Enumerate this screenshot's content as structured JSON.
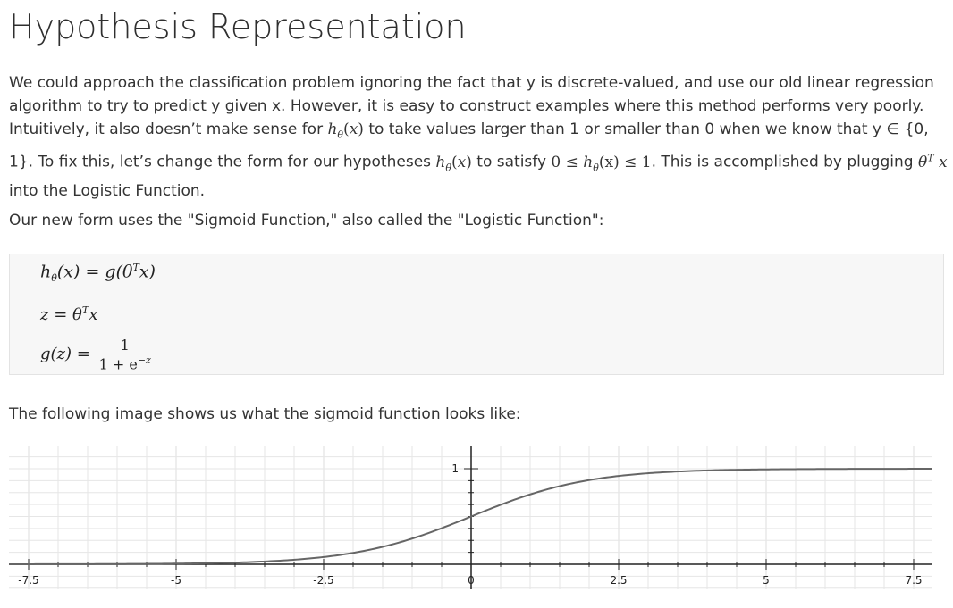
{
  "title": "Hypothesis Representation",
  "p1": {
    "t1": "We could approach the classification problem ignoring the fact that y is discrete-valued, and use our old linear regression algorithm to try to predict y given x. However, it is easy to construct examples where this method performs very poorly. Intuitively, it also doesn’t make sense for ",
    "t2": " to take values larger than 1 or smaller than 0 when we know that y ∈ {0, 1}. To fix this, let’s change the form for our hypotheses ",
    "t3": " to satisfy ",
    "t4": ". This is accomplished by plugging ",
    "t5": " into the Logistic Function."
  },
  "p2": "Our new form uses the \"Sigmoid Function,\" also called the \"Logistic Function\":",
  "p3": "The following image shows us what the sigmoid function looks like:",
  "math": {
    "h": "h",
    "theta": "θ",
    "x": "x",
    "eq1_rest": "(x) = g(θ",
    "T": "T",
    "eq1_end": "x)",
    "eq2": "z = θ",
    "eq2_end": "x",
    "eq3_left": "g(z) =",
    "one": "1",
    "den": "1 + e",
    "neg_z": "−z",
    "ineq_left": "0 ≤ ",
    "ineq_right": "(x) ≤ 1"
  },
  "chart_data": {
    "type": "line",
    "function": "sigmoid",
    "xlim": [
      -7.5,
      7.5
    ],
    "ylim": [
      0,
      1
    ],
    "x_tick_labels": [
      "-7.5",
      "-5",
      "-2.5",
      "0",
      "2.5",
      "5",
      "7.5"
    ],
    "x_ticks": [
      -7.5,
      -5,
      -2.5,
      0,
      2.5,
      5,
      7.5
    ],
    "y_tick_labels": [
      "1"
    ],
    "y_ticks": [
      1
    ],
    "x": [
      -7.5,
      -7,
      -6.5,
      -6,
      -5.5,
      -5,
      -4.5,
      -4,
      -3.5,
      -3,
      -2.5,
      -2,
      -1.5,
      -1,
      -0.5,
      0,
      0.5,
      1,
      1.5,
      2,
      2.5,
      3,
      3.5,
      4,
      4.5,
      5,
      5.5,
      6,
      6.5,
      7,
      7.5
    ],
    "y": [
      0.001,
      0.001,
      0.002,
      0.002,
      0.004,
      0.007,
      0.011,
      0.018,
      0.029,
      0.047,
      0.076,
      0.119,
      0.182,
      0.269,
      0.378,
      0.5,
      0.622,
      0.731,
      0.818,
      0.881,
      0.924,
      0.953,
      0.971,
      0.982,
      0.989,
      0.993,
      0.996,
      0.998,
      0.998,
      0.999,
      0.999
    ],
    "grid": true,
    "line_color": "#666666",
    "grid_color": "#e6e6e6",
    "axis_color": "#222222"
  }
}
